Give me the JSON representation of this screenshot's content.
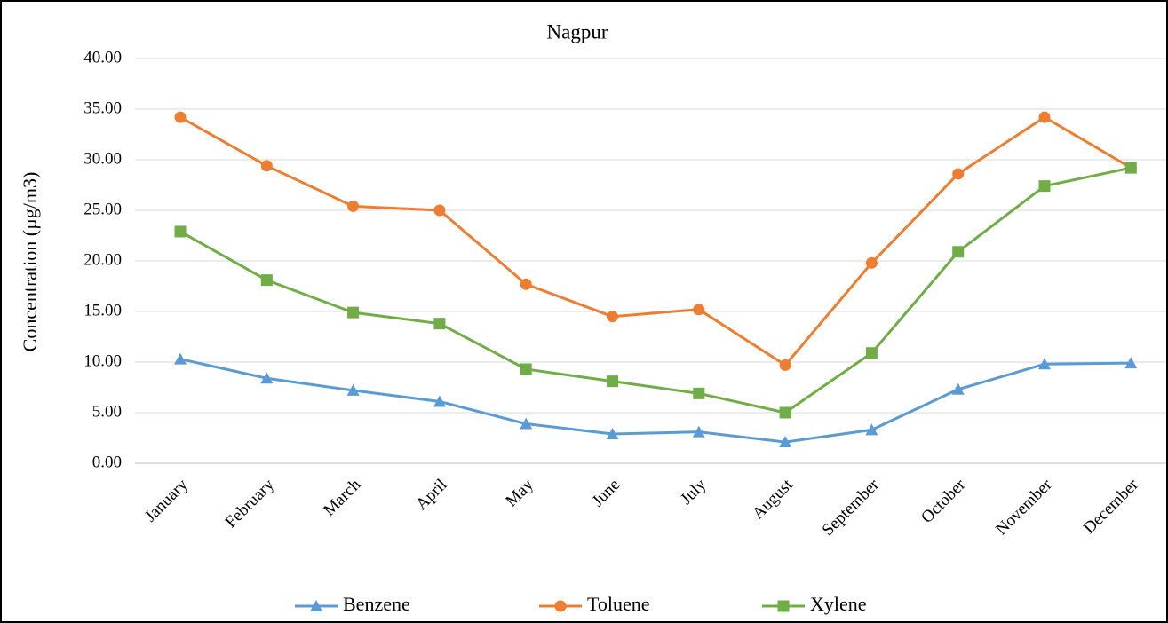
{
  "chart_data": {
    "type": "line",
    "title": "Nagpur",
    "y_label": "Concentration (µg/m3)",
    "categories": [
      "January",
      "February",
      "March",
      "April",
      "May",
      "June",
      "July",
      "August",
      "September",
      "October",
      "November",
      "December"
    ],
    "series": [
      {
        "name": "Benzene",
        "color": "#5b9bd5",
        "marker": "triangle",
        "values": [
          10.3,
          8.4,
          7.2,
          6.1,
          3.9,
          2.9,
          3.1,
          2.1,
          3.3,
          7.3,
          9.8,
          9.9
        ]
      },
      {
        "name": "Toluene",
        "color": "#ed7d31",
        "marker": "circle",
        "values": [
          34.2,
          29.4,
          25.4,
          25.0,
          17.7,
          14.5,
          15.2,
          9.7,
          19.8,
          28.6,
          34.2,
          29.2
        ]
      },
      {
        "name": "Xylene",
        "color": "#70ad47",
        "marker": "square",
        "values": [
          22.9,
          18.1,
          14.9,
          13.8,
          9.3,
          8.1,
          6.9,
          5.0,
          10.9,
          20.9,
          27.4,
          29.2
        ]
      }
    ],
    "ylim": [
      0,
      40
    ],
    "yticks": [
      {
        "value": 0,
        "label": "0.00"
      },
      {
        "value": 5,
        "label": "5.00"
      },
      {
        "value": 10,
        "label": "10.00"
      },
      {
        "value": 15,
        "label": "15.00"
      },
      {
        "value": 20,
        "label": "20.00"
      },
      {
        "value": 25,
        "label": "25.00"
      },
      {
        "value": 30,
        "label": "30.00"
      },
      {
        "value": 35,
        "label": "35.00"
      },
      {
        "value": 40,
        "label": "40.00"
      }
    ],
    "grid": true,
    "legend": "bottom"
  }
}
